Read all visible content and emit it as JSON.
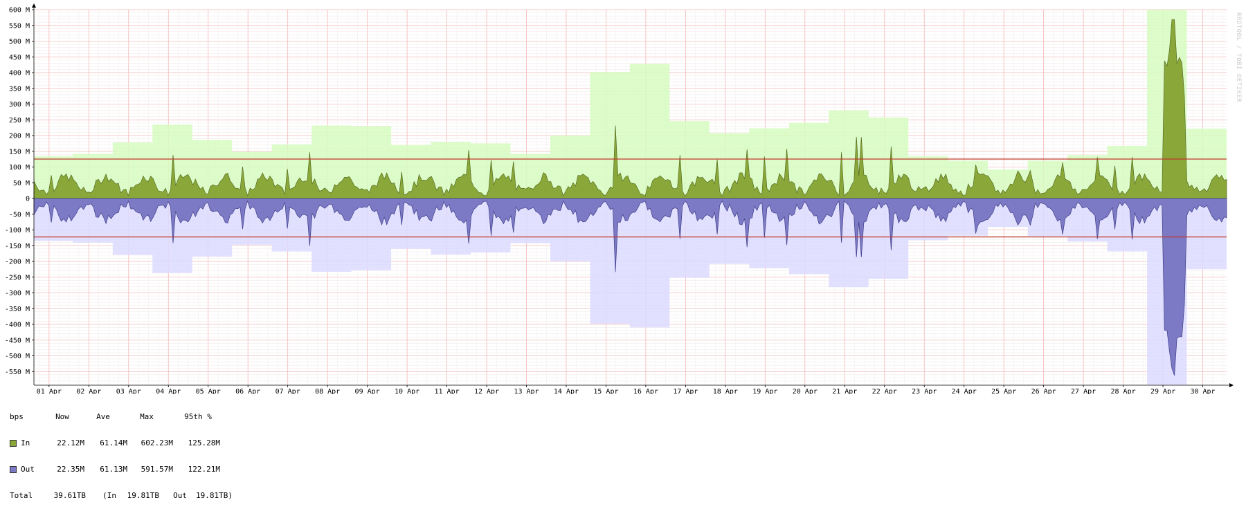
{
  "chart_data": {
    "type": "area",
    "units": "bps",
    "x_labels": [
      "01 Apr",
      "02 Apr",
      "03 Apr",
      "04 Apr",
      "05 Apr",
      "06 Apr",
      "07 Apr",
      "08 Apr",
      "09 Apr",
      "10 Apr",
      "11 Apr",
      "12 Apr",
      "13 Apr",
      "14 Apr",
      "15 Apr",
      "16 Apr",
      "17 Apr",
      "18 Apr",
      "19 Apr",
      "20 Apr",
      "21 Apr",
      "22 Apr",
      "23 Apr",
      "24 Apr",
      "25 Apr",
      "26 Apr",
      "27 Apr",
      "28 Apr",
      "29 Apr",
      "30 Apr"
    ],
    "y_tick_labels": [
      "600 M",
      "550 M",
      "500 M",
      "450 M",
      "400 M",
      "350 M",
      "300 M",
      "250 M",
      "200 M",
      "150 M",
      "100 M",
      "50 M",
      "0",
      "-50 M",
      "-100 M",
      "-150 M",
      "-200 M",
      "-250 M",
      "-300 M",
      "-350 M",
      "-400 M",
      "-450 M",
      "-500 M",
      "-550 M"
    ],
    "y_tick_values": [
      600,
      550,
      500,
      450,
      400,
      350,
      300,
      250,
      200,
      150,
      100,
      50,
      0,
      -50,
      -100,
      -150,
      -200,
      -250,
      -300,
      -350,
      -400,
      -450,
      -500,
      -550
    ],
    "ylim": [
      -600,
      600
    ],
    "x_range_days": [
      0.62,
      30.6
    ],
    "grid": true,
    "series": [
      {
        "name": "In",
        "color": "#8aa83a",
        "max_color": "#d6fcc0"
      },
      {
        "name": "Out",
        "color": "#7c7ac4",
        "max_color": "#dcdaff"
      }
    ],
    "daily_max_in": [
      135,
      142,
      178,
      235,
      186,
      148,
      172,
      232,
      230,
      170,
      180,
      175,
      142,
      200,
      402,
      428,
      246,
      208,
      223,
      240,
      280,
      257,
      135,
      120,
      92,
      120,
      138,
      167,
      602,
      222
    ],
    "daily_max_out": [
      135,
      140,
      179,
      237,
      185,
      147,
      168,
      233,
      228,
      160,
      178,
      172,
      142,
      200,
      398,
      410,
      252,
      208,
      222,
      240,
      282,
      255,
      133,
      118,
      90,
      120,
      137,
      168,
      592,
      225
    ],
    "percentile_95_in": 125.28,
    "percentile_95_out": 122.21,
    "legend": {
      "units_label": "bps",
      "headers": [
        "Now",
        "Ave",
        "Max",
        "95th %"
      ],
      "rows": [
        {
          "label": "In",
          "now": "22.12M",
          "ave": "61.14M",
          "max": "602.23M",
          "p95": "125.28M"
        },
        {
          "label": "Out",
          "now": "22.35M",
          "ave": "61.13M",
          "max": "591.57M",
          "p95": "122.21M"
        }
      ],
      "total": {
        "label": "Total",
        "value": "39.61TB",
        "in_label": "(In",
        "in_value": "19.81TB",
        "out_label": "Out",
        "out_value": "19.81TB)"
      }
    }
  },
  "credit": "RRDTOOL / TOBI OETIKER"
}
